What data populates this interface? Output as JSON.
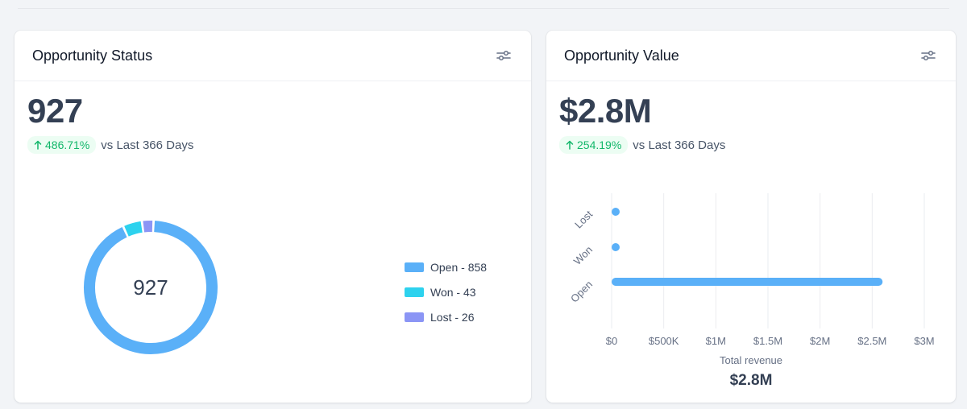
{
  "status_card": {
    "title": "Opportunity Status",
    "big_value": "927",
    "delta": "486.71%",
    "delta_suffix": "vs Last 366 Days",
    "donut_center": "927",
    "legend": [
      {
        "label": "Open - 858",
        "color": "#5ab0f8"
      },
      {
        "label": "Won - 43",
        "color": "#2dd2ee"
      },
      {
        "label": "Lost - 26",
        "color": "#8b95f5"
      }
    ]
  },
  "value_card": {
    "title": "Opportunity Value",
    "big_value": "$2.8M",
    "delta": "254.19%",
    "delta_suffix": "vs Last 366 Days",
    "total_label": "Total revenue",
    "total_value": "$2.8M"
  },
  "chart_data": [
    {
      "type": "pie",
      "categories": [
        "Open",
        "Won",
        "Lost"
      ],
      "values": [
        858,
        43,
        26
      ],
      "colors": [
        "#5ab0f8",
        "#2dd2ee",
        "#8b95f5"
      ],
      "center_label": "927",
      "legend_position": "right"
    },
    {
      "type": "bar",
      "orientation": "horizontal",
      "categories": [
        "Lost",
        "Won",
        "Open"
      ],
      "values": [
        60000,
        30000,
        2600000
      ],
      "x_ticks": [
        "$0",
        "$500K",
        "$1M",
        "$1.5M",
        "$2M",
        "$2.5M",
        "$3M"
      ],
      "xlim": [
        0,
        3000000
      ],
      "color": "#5ab0f8",
      "grid": true
    }
  ],
  "colors": {
    "accent": "#5ab0f8",
    "positive": "#12b76a",
    "positive_bg": "#ecfdf3"
  }
}
